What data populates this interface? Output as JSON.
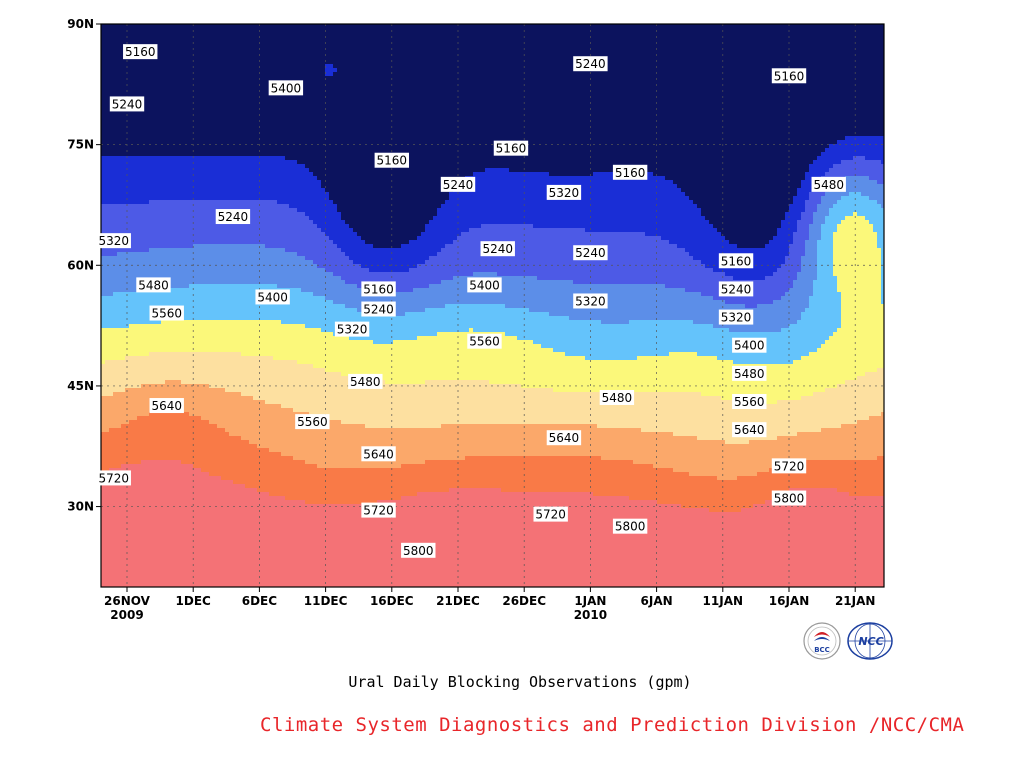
{
  "chart_data": {
    "type": "heatmap",
    "title": "Ural Daily Blocking Observations (gpm)",
    "xlabel": "",
    "ylabel": "",
    "y_ticks": [
      "90N",
      "75N",
      "60N",
      "45N",
      "30N"
    ],
    "x_ticks": [
      {
        "label": "26NOV",
        "sub": "2009"
      },
      {
        "label": "1DEC",
        "sub": ""
      },
      {
        "label": "6DEC",
        "sub": ""
      },
      {
        "label": "11DEC",
        "sub": ""
      },
      {
        "label": "16DEC",
        "sub": ""
      },
      {
        "label": "21DEC",
        "sub": ""
      },
      {
        "label": "26DEC",
        "sub": ""
      },
      {
        "label": "1JAN",
        "sub": "2010"
      },
      {
        "label": "6JAN",
        "sub": ""
      },
      {
        "label": "11JAN",
        "sub": ""
      },
      {
        "label": "16JAN",
        "sub": ""
      },
      {
        "label": "21JAN",
        "sub": ""
      }
    ],
    "ylim": [
      20,
      90
    ],
    "contour_levels": [
      5160,
      5240,
      5320,
      5400,
      5480,
      5560,
      5640,
      5720,
      5800
    ],
    "level_colors": [
      "#0c135e",
      "#1a2ed6",
      "#4d5ae6",
      "#5c8ee8",
      "#64c3fb",
      "#fbf87a",
      "#fde0a0",
      "#fba86a",
      "#f97a47",
      "#f47276"
    ],
    "contour_labels": [
      {
        "text": "5160",
        "date": "28NOV",
        "lat": 86.5
      },
      {
        "text": "5240",
        "date": "27NOV",
        "lat": 80
      },
      {
        "text": "5400",
        "date": "9DEC",
        "lat": 82
      },
      {
        "text": "5240",
        "date": "5DEC",
        "lat": 66
      },
      {
        "text": "5320",
        "date": "26NOV",
        "lat": 63
      },
      {
        "text": "5160",
        "date": "17DEC",
        "lat": 73
      },
      {
        "text": "5240",
        "date": "22DEC",
        "lat": 70
      },
      {
        "text": "5160",
        "date": "26DEC",
        "lat": 74.5
      },
      {
        "text": "5240",
        "date": "25DEC",
        "lat": 62
      },
      {
        "text": "5240",
        "date": "1JAN",
        "lat": 85
      },
      {
        "text": "5320",
        "date": "30DEC",
        "lat": 69
      },
      {
        "text": "5160",
        "date": "4JAN",
        "lat": 71.5
      },
      {
        "text": "5240",
        "date": "1JAN",
        "lat": 61.5
      },
      {
        "text": "5160",
        "date": "16JAN",
        "lat": 83.5
      },
      {
        "text": "5480",
        "date": "19JAN",
        "lat": 70
      },
      {
        "text": "5160",
        "date": "12JAN",
        "lat": 60.5
      },
      {
        "text": "5240",
        "date": "12JAN",
        "lat": 57
      },
      {
        "text": "5320",
        "date": "12JAN",
        "lat": 53.5
      },
      {
        "text": "5400",
        "date": "13JAN",
        "lat": 50
      },
      {
        "text": "5160",
        "date": "16DEC",
        "lat": 57
      },
      {
        "text": "5240",
        "date": "16DEC",
        "lat": 54.5
      },
      {
        "text": "5320",
        "date": "14DEC",
        "lat": 52
      },
      {
        "text": "5400",
        "date": "8DEC",
        "lat": 56
      },
      {
        "text": "5400",
        "date": "24DEC",
        "lat": 57.5
      },
      {
        "text": "5320",
        "date": "1JAN",
        "lat": 55.5
      },
      {
        "text": "5480",
        "date": "29NOV",
        "lat": 57.5
      },
      {
        "text": "5560",
        "date": "30NOV",
        "lat": 54
      },
      {
        "text": "5560",
        "date": "24DEC",
        "lat": 50.5
      },
      {
        "text": "5480",
        "date": "15DEC",
        "lat": 45.5
      },
      {
        "text": "5480",
        "date": "3JAN",
        "lat": 43.5
      },
      {
        "text": "5480",
        "date": "13JAN",
        "lat": 46.5
      },
      {
        "text": "5560",
        "date": "11DEC",
        "lat": 40.5
      },
      {
        "text": "5560",
        "date": "13JAN",
        "lat": 43
      },
      {
        "text": "5640",
        "date": "30NOV",
        "lat": 42.5
      },
      {
        "text": "5640",
        "date": "16DEC",
        "lat": 36.5
      },
      {
        "text": "5640",
        "date": "30DEC",
        "lat": 38.5
      },
      {
        "text": "5640",
        "date": "13JAN",
        "lat": 39.5
      },
      {
        "text": "5720",
        "date": "26NOV",
        "lat": 33.5
      },
      {
        "text": "5720",
        "date": "16DEC",
        "lat": 29.5
      },
      {
        "text": "5720",
        "date": "29DEC",
        "lat": 29
      },
      {
        "text": "5720",
        "date": "16JAN",
        "lat": 35
      },
      {
        "text": "5800",
        "date": "19DEC",
        "lat": 24.5
      },
      {
        "text": "5800",
        "date": "4JAN",
        "lat": 27.5
      },
      {
        "text": "5800",
        "date": "16JAN",
        "lat": 31
      }
    ]
  },
  "caption": "Ural Daily Blocking Observations (gpm)",
  "credit": "Climate System Diagnostics and Prediction Division /NCC/CMA",
  "logos": [
    {
      "name": "bcc-logo",
      "text": "BCC",
      "color": "#d01f26"
    },
    {
      "name": "ncc-logo",
      "text": "NCC",
      "color": "#1c3fa0"
    }
  ]
}
